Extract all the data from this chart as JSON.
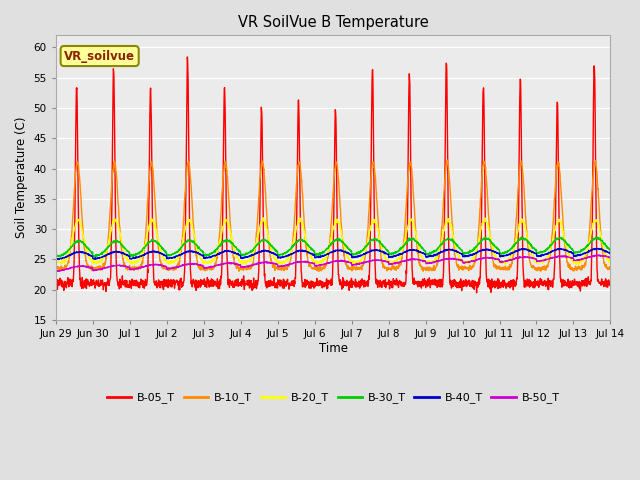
{
  "title": "VR SoilVue B Temperature",
  "xlabel": "Time",
  "ylabel": "Soil Temperature (C)",
  "ylim": [
    15,
    62
  ],
  "yticks": [
    15,
    20,
    25,
    30,
    35,
    40,
    45,
    50,
    55,
    60
  ],
  "annotation": "VR_soilvue",
  "fig_bg": "#e0e0e0",
  "plot_bg": "#ebebeb",
  "series_colors": {
    "B-05_T": "#ff0000",
    "B-10_T": "#ff8c00",
    "B-20_T": "#ffff00",
    "B-30_T": "#00cc00",
    "B-40_T": "#0000cc",
    "B-50_T": "#cc00cc"
  },
  "x_tick_labels": [
    "Jun 29",
    "Jun 30",
    "Jul 1",
    "Jul 2",
    "Jul 3",
    "Jul 4",
    "Jul 5",
    "Jul 6",
    "Jul 7",
    "Jul 8",
    "Jul 9",
    "Jul 10",
    "Jul 11",
    "Jul 12",
    "Jul 13",
    "Jul 14"
  ],
  "num_days": 16
}
